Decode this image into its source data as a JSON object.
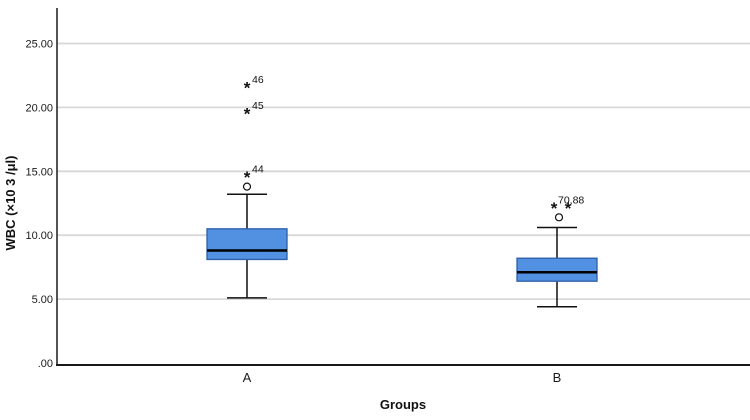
{
  "chart_data": {
    "type": "boxplot",
    "title": "",
    "xlabel": "Groups",
    "ylabel": "WBC (×10 3 /μl)",
    "ylim": [
      0,
      27.8
    ],
    "grid": "horizontal-gridlines",
    "legend": "none",
    "yticks": [
      {
        "value": 0,
        "label": ".00"
      },
      {
        "value": 5,
        "label": "5.00"
      },
      {
        "value": 10,
        "label": "10.00"
      },
      {
        "value": 15,
        "label": "15.00"
      },
      {
        "value": 20,
        "label": "20.00"
      },
      {
        "value": 25,
        "label": "25.00"
      }
    ],
    "categories": [
      "A",
      "B"
    ],
    "series": [
      {
        "category": "A",
        "whisker_low": 5.1,
        "q1": 8.1,
        "median": 8.8,
        "q3": 10.5,
        "whisker_high": 13.2,
        "outliers": [
          {
            "marker": "circle",
            "value": 13.8,
            "label": "",
            "dx": 0,
            "label_dx": 5
          },
          {
            "marker": "star",
            "value": 14.5,
            "label": "44",
            "dx": 0,
            "label_dx": 5
          },
          {
            "marker": "star",
            "value": 19.5,
            "label": "45",
            "dx": 0,
            "label_dx": 5
          },
          {
            "marker": "star",
            "value": 21.5,
            "label": "46",
            "dx": 0,
            "label_dx": 5
          }
        ]
      },
      {
        "category": "B",
        "whisker_low": 4.4,
        "q1": 6.4,
        "median": 7.1,
        "q3": 8.2,
        "whisker_high": 10.6,
        "outliers": [
          {
            "marker": "circle",
            "value": 11.4,
            "label": "",
            "dx": 2,
            "label_dx": 5
          },
          {
            "marker": "star",
            "value": 12.1,
            "label": "",
            "dx": -3,
            "label_dx": 5
          },
          {
            "marker": "star",
            "value": 12.1,
            "label": "70,88",
            "dx": 11,
            "label_dx": -10
          }
        ]
      }
    ],
    "colors": {
      "box_fill": "#5290E2",
      "box_border": "#2C5FA8",
      "median_line": "#000000",
      "whisker": "#111111",
      "gridline": "#D8D8D8",
      "axis_line": "#1a1a1a",
      "text": "#1a1a1a",
      "background": "#ffffff"
    }
  }
}
